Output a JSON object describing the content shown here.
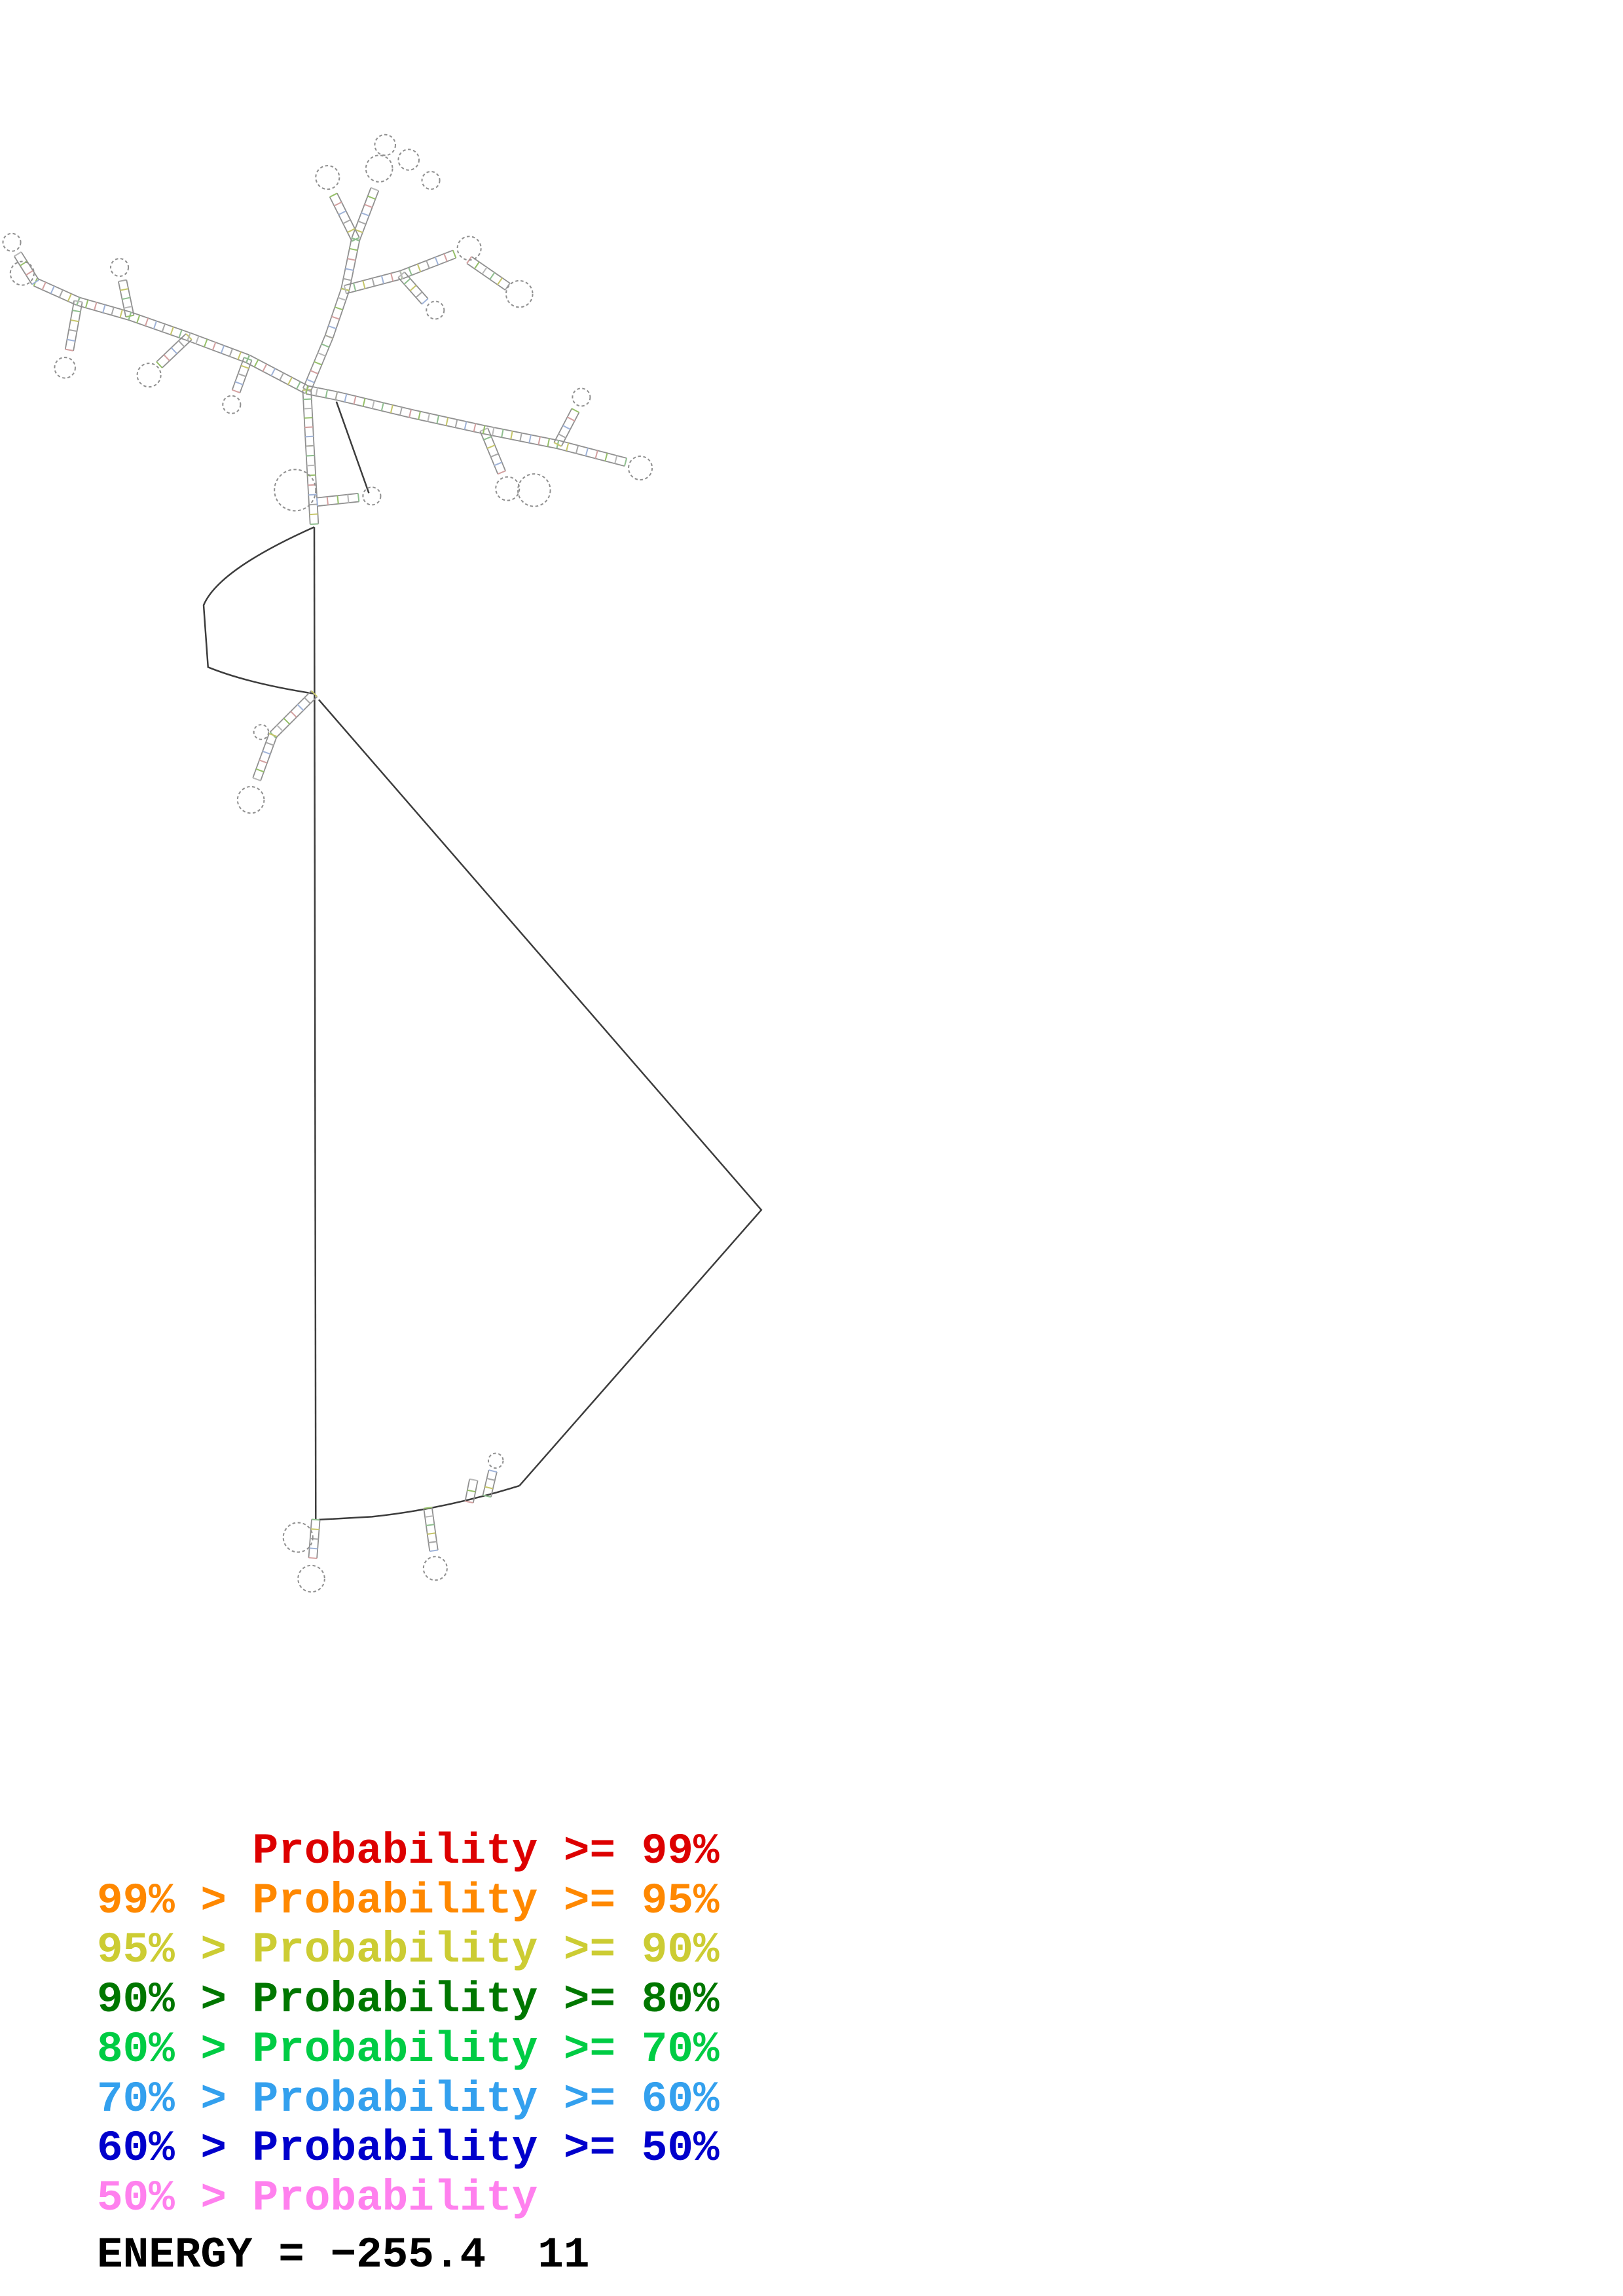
{
  "legend": {
    "entries": [
      {
        "text": "      Probability >= 99%",
        "color": "#dd0000"
      },
      {
        "text": "99% > Probability >= 95%",
        "color": "#ff8800"
      },
      {
        "text": "95% > Probability >= 90%",
        "color": "#cccc33"
      },
      {
        "text": "90% > Probability >= 80%",
        "color": "#007700"
      },
      {
        "text": "80% > Probability >= 70%",
        "color": "#00cc44"
      },
      {
        "text": "70% > Probability >= 60%",
        "color": "#33a0ee"
      },
      {
        "text": "60% > Probability >= 50%",
        "color": "#0000cc"
      },
      {
        "text": "50% > Probability",
        "color": "#ff80ee"
      }
    ]
  },
  "energy": {
    "text": "ENERGY = −255.4  11"
  },
  "structure": {
    "backbone_color": "#3c3c3c",
    "helix_color": "#909090",
    "rung_palette": [
      "#8fbf8f",
      "#c6c66a",
      "#a7a7a7",
      "#9fb3d9",
      "#d4a0a0",
      "#96c06a",
      "#b8b8b8"
    ],
    "backbone_paths": [
      "M213,357 L214,1030",
      "M216,474 L516,820 L352,1007",
      "M352,1007 Q300,1023 252,1028 L216,1030",
      "M213,357 Q148,386 138,410 L141,452 Q168,463 213,470",
      "M228,272 L250,334"
    ],
    "helices": [
      [
        213,
        355,
        210,
        302
      ],
      [
        210,
        302,
        208,
        264
      ],
      [
        208,
        264,
        223,
        228
      ],
      [
        223,
        228,
        234,
        196
      ],
      [
        234,
        196,
        241,
        162
      ],
      [
        241,
        162,
        254,
        128
      ],
      [
        241,
        162,
        226,
        132
      ],
      [
        208,
        264,
        168,
        243
      ],
      [
        168,
        243,
        128,
        228
      ],
      [
        128,
        228,
        108,
        247
      ],
      [
        128,
        228,
        88,
        214
      ],
      [
        88,
        214,
        53,
        204
      ],
      [
        53,
        204,
        24,
        191
      ],
      [
        53,
        204,
        47,
        237
      ],
      [
        88,
        214,
        83,
        190
      ],
      [
        24,
        191,
        12,
        172
      ],
      [
        168,
        243,
        160,
        265
      ],
      [
        208,
        264,
        228,
        268
      ],
      [
        228,
        268,
        278,
        280
      ],
      [
        278,
        280,
        328,
        291
      ],
      [
        328,
        291,
        340,
        320
      ],
      [
        328,
        291,
        378,
        301
      ],
      [
        378,
        301,
        424,
        313
      ],
      [
        378,
        301,
        390,
        278
      ],
      [
        234,
        196,
        272,
        186
      ],
      [
        272,
        186,
        308,
        172
      ],
      [
        272,
        186,
        288,
        204
      ],
      [
        318,
        176,
        344,
        194
      ],
      [
        215,
        340,
        243,
        337
      ],
      [
        213,
        470,
        185,
        498
      ],
      [
        185,
        498,
        174,
        528
      ],
      [
        214,
        1030,
        212,
        1056
      ],
      [
        290,
        1022,
        294,
        1051
      ],
      [
        318,
        1018,
        321,
        1003
      ],
      [
        330,
        1014,
        334,
        997
      ]
    ],
    "loops": [
      [
        257,
        114,
        9
      ],
      [
        222,
        120,
        8
      ],
      [
        261,
        98,
        7
      ],
      [
        277,
        108,
        7
      ],
      [
        292,
        122,
        6
      ],
      [
        101,
        254,
        8
      ],
      [
        15,
        185,
        8
      ],
      [
        44,
        249,
        7
      ],
      [
        81,
        181,
        6
      ],
      [
        8,
        164,
        6
      ],
      [
        157,
        274,
        6
      ],
      [
        344,
        331,
        8
      ],
      [
        362,
        332,
        11
      ],
      [
        434,
        317,
        8
      ],
      [
        394,
        269,
        6
      ],
      [
        318,
        168,
        8
      ],
      [
        295,
        210,
        6
      ],
      [
        352,
        199,
        9
      ],
      [
        252,
        336,
        6
      ],
      [
        200,
        332,
        14
      ],
      [
        170,
        542,
        9
      ],
      [
        177,
        496,
        5
      ],
      [
        211,
        1070,
        9
      ],
      [
        295,
        1063,
        8
      ],
      [
        336,
        990,
        5
      ],
      [
        202,
        1042,
        10
      ]
    ]
  }
}
